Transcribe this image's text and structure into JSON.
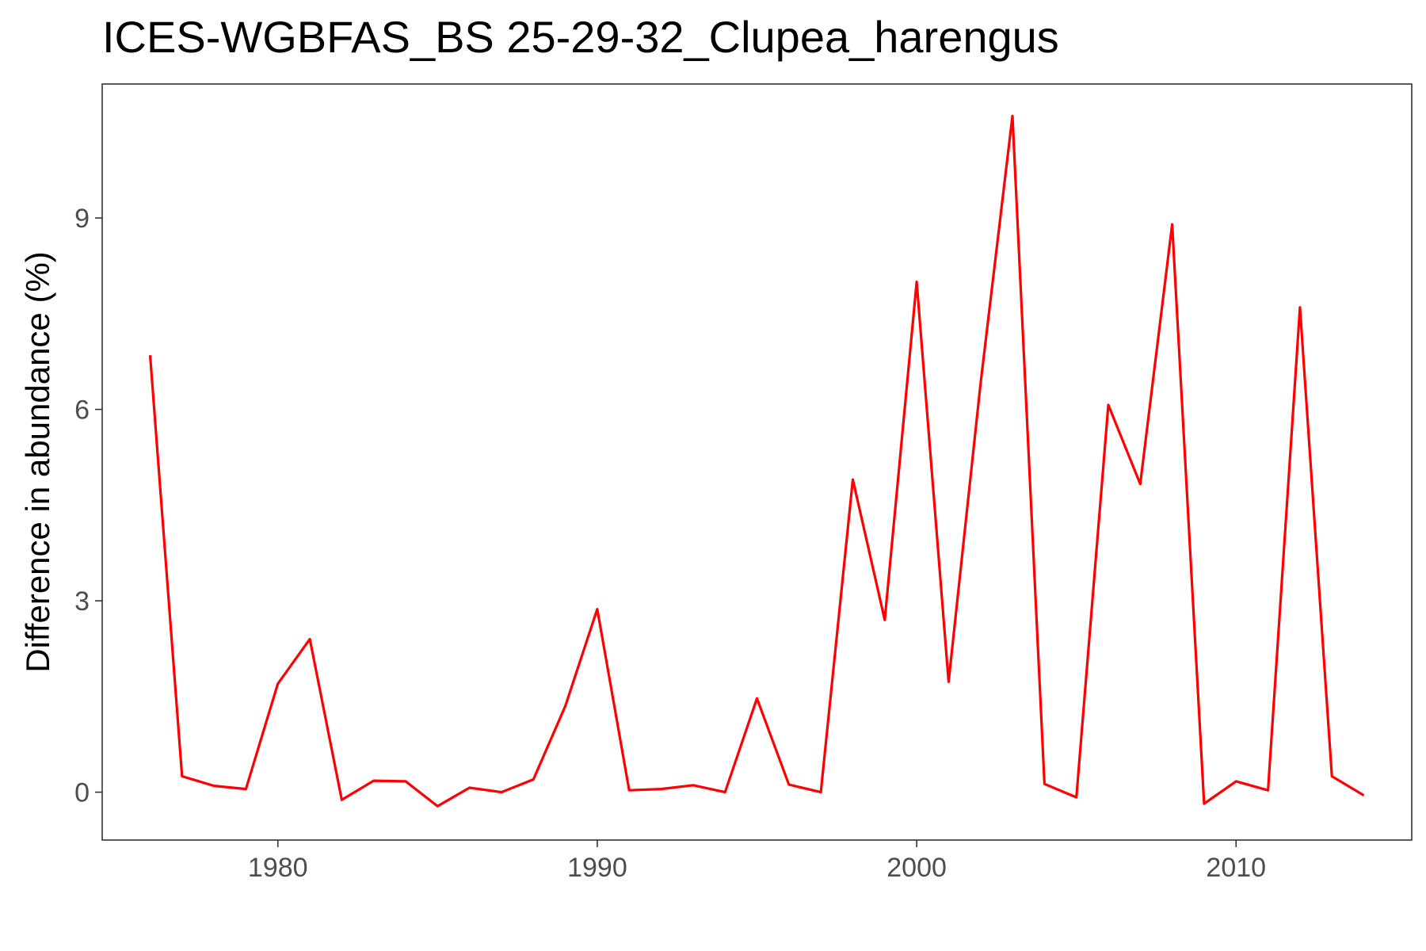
{
  "chart_data": {
    "type": "line",
    "title": "ICES-WGBFAS_BS 25-29-32_Clupea_harengus",
    "xlabel": "",
    "ylabel": "Difference in abundance (%)",
    "xlim": [
      1974.5,
      2015.5
    ],
    "ylim": [
      -0.75,
      11.1
    ],
    "x_ticks": [
      1980,
      1990,
      2000,
      2010
    ],
    "y_ticks": [
      0,
      3,
      6,
      9
    ],
    "grid": false,
    "legend": "none",
    "line_color": "#ff0000",
    "series": [
      {
        "x": [
          1976,
          1977,
          1978,
          1979,
          1980,
          1981,
          1982,
          1983,
          1984,
          1985,
          1986,
          1987,
          1988,
          1989,
          1990,
          1991,
          1992,
          1993,
          1994,
          1995,
          1996,
          1997,
          1998,
          1999,
          2000,
          2001,
          2002,
          2003,
          2004,
          2005,
          2006,
          2007,
          2008,
          2009,
          2010,
          2011,
          2012,
          2013,
          2014
        ],
        "y": [
          6.85,
          0.25,
          0.1,
          0.05,
          1.7,
          2.4,
          -0.12,
          0.18,
          0.17,
          -0.22,
          0.07,
          0.0,
          0.2,
          1.35,
          2.87,
          0.03,
          0.05,
          0.11,
          0.0,
          1.47,
          0.12,
          0.0,
          4.9,
          2.7,
          8.0,
          1.73,
          6.4,
          10.6,
          0.13,
          -0.08,
          6.07,
          4.83,
          8.9,
          -0.18,
          0.17,
          0.03,
          7.6,
          0.25,
          -0.05
        ]
      }
    ]
  }
}
